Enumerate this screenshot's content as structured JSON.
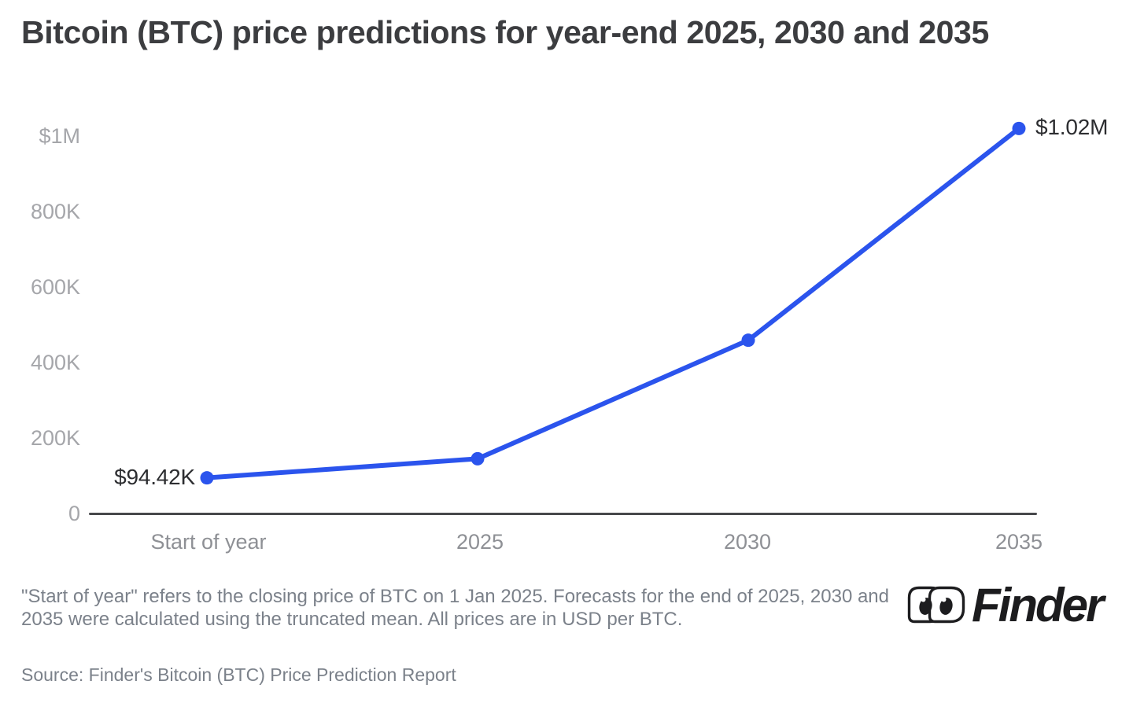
{
  "title": "Bitcoin (BTC) price predictions for year-end 2025, 2030 and 2035",
  "chart_data": {
    "type": "line",
    "series_name": "BTC price prediction (USD per BTC)",
    "categories": [
      "Start of year",
      "2025",
      "2030",
      "2035"
    ],
    "values": [
      94420,
      145000,
      459000,
      1020000
    ],
    "point_labels": {
      "start": "$94.42K",
      "end": "$1.02M"
    },
    "yticks": [
      {
        "label": "$1M",
        "value": 1000000
      },
      {
        "label": "800K",
        "value": 800000
      },
      {
        "label": "600K",
        "value": 600000
      },
      {
        "label": "400K",
        "value": 400000
      },
      {
        "label": "200K",
        "value": 200000
      },
      {
        "label": "0",
        "value": 0
      }
    ],
    "ylim": [
      0,
      1000000
    ],
    "xlabel": "",
    "ylabel": "",
    "grid": false,
    "legend_position": "none",
    "line_color": "#2b54ed",
    "marker_color": "#2b54ed"
  },
  "footnote": "\"Start of year\" refers to the closing price of BTC on 1 Jan 2025. Forecasts for the end of 2025, 2030 and 2035 were calculated using the truncated mean. All prices are in USD per BTC.",
  "source": "Source: Finder's Bitcoin (BTC) Price Prediction Report",
  "brand": {
    "name": "Finder"
  }
}
